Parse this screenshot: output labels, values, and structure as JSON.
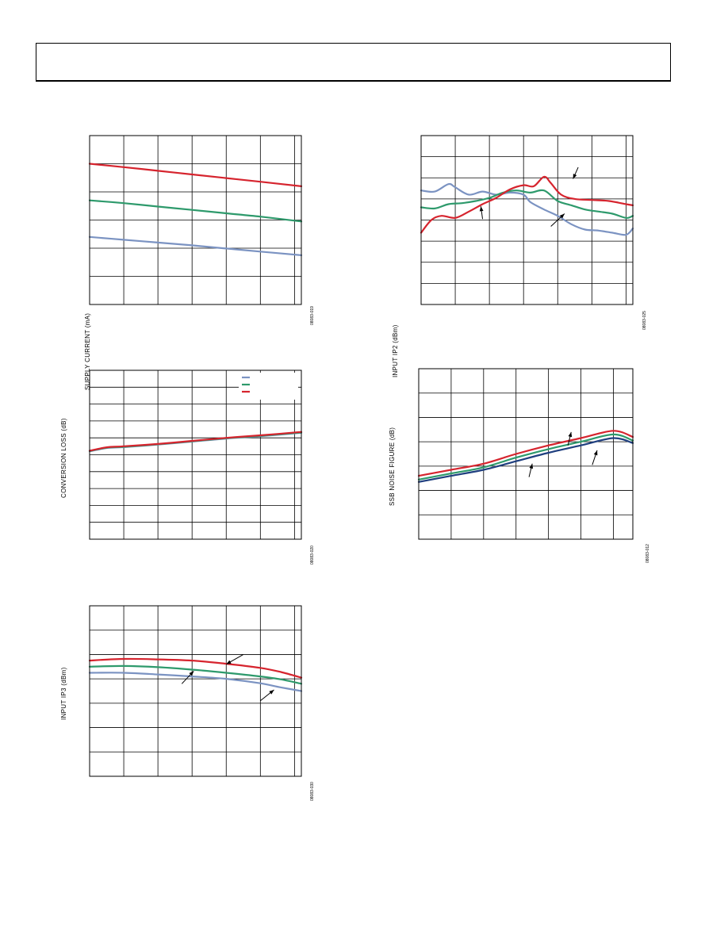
{
  "page": {
    "title": ""
  },
  "chart_data": [
    {
      "id": "c1",
      "type": "line",
      "ylabel": "SUPPLY CURRENT (mA)",
      "fig_id": "08083-019",
      "xlim": [
        0,
        6.2
      ],
      "ylim": [
        0,
        6
      ],
      "xgrid": [
        1,
        2,
        3,
        4,
        5,
        6
      ],
      "ygrid": [
        1,
        2,
        3,
        4,
        5
      ],
      "series": [
        {
          "color": "#d6242e",
          "x": [
            0,
            1,
            2,
            3,
            4,
            5,
            6.2
          ],
          "y": [
            5.0,
            4.88,
            4.75,
            4.62,
            4.49,
            4.36,
            4.2
          ]
        },
        {
          "color": "#2e9a6c",
          "x": [
            0,
            1,
            2,
            3,
            4,
            5,
            6.2
          ],
          "y": [
            3.7,
            3.6,
            3.48,
            3.36,
            3.24,
            3.12,
            2.95
          ]
        },
        {
          "color": "#7b93c2",
          "x": [
            0,
            1,
            2,
            3,
            4,
            5,
            6.2
          ],
          "y": [
            2.4,
            2.3,
            2.2,
            2.1,
            1.99,
            1.88,
            1.75
          ]
        }
      ],
      "arrows": []
    },
    {
      "id": "c2",
      "type": "line",
      "ylabel": "INPUT IP2 (dBm)",
      "fig_id": "08083-025",
      "xlim": [
        0,
        6.2
      ],
      "ylim": [
        0,
        8
      ],
      "xgrid": [
        1,
        2,
        3,
        4,
        5,
        6
      ],
      "ygrid": [
        1,
        2,
        3,
        4,
        5,
        6,
        7
      ],
      "series": [
        {
          "color": "#7b93c2",
          "x": [
            0,
            0.4,
            0.8,
            1.0,
            1.4,
            1.8,
            2.2,
            2.6,
            3.0,
            3.2,
            3.6,
            4.0,
            4.4,
            4.8,
            5.2,
            5.6,
            6.0,
            6.2
          ],
          "y": [
            5.4,
            5.35,
            5.7,
            5.55,
            5.2,
            5.35,
            5.2,
            5.3,
            5.2,
            4.85,
            4.5,
            4.2,
            3.8,
            3.55,
            3.5,
            3.4,
            3.3,
            3.6
          ]
        },
        {
          "color": "#2e9a6c",
          "x": [
            0,
            0.4,
            0.8,
            1.2,
            1.6,
            2.0,
            2.4,
            2.8,
            3.2,
            3.6,
            4.0,
            4.4,
            4.8,
            5.2,
            5.6,
            6.0,
            6.2
          ],
          "y": [
            4.6,
            4.55,
            4.75,
            4.8,
            4.9,
            5.05,
            5.3,
            5.4,
            5.3,
            5.4,
            4.9,
            4.7,
            4.5,
            4.4,
            4.3,
            4.1,
            4.2
          ]
        },
        {
          "color": "#d6242e",
          "x": [
            0,
            0.3,
            0.6,
            1.0,
            1.4,
            1.8,
            2.2,
            2.6,
            3.0,
            3.3,
            3.6,
            3.8,
            4.1,
            4.5,
            5.0,
            5.5,
            6.0,
            6.2
          ],
          "y": [
            3.4,
            4.0,
            4.2,
            4.1,
            4.4,
            4.75,
            5.05,
            5.45,
            5.65,
            5.6,
            6.05,
            5.75,
            5.2,
            5.0,
            4.95,
            4.9,
            4.75,
            4.7
          ]
        }
      ],
      "arrows": [
        {
          "x1": 4.6,
          "y1": 6.5,
          "x2": 4.45,
          "y2": 5.95
        },
        {
          "x1": 1.8,
          "y1": 4.05,
          "x2": 1.75,
          "y2": 4.65
        },
        {
          "x1": 3.8,
          "y1": 3.7,
          "x2": 4.2,
          "y2": 4.3
        }
      ]
    },
    {
      "id": "c3",
      "type": "line",
      "ylabel": "CONVERSION LOSS (dB)",
      "fig_id": "08083-020",
      "xlim": [
        0,
        6.2
      ],
      "ylim": [
        0,
        10
      ],
      "xgrid": [
        1,
        2,
        3,
        4,
        5,
        6
      ],
      "ygrid": [
        1,
        2,
        3,
        4,
        5,
        6,
        7,
        8,
        9
      ],
      "legend": {
        "items": [
          {
            "color": "#7b93c2"
          },
          {
            "color": "#2e9a6c"
          },
          {
            "color": "#d6242e"
          }
        ]
      },
      "series": [
        {
          "color": "#7b93c2",
          "x": [
            0,
            0.5,
            1,
            2,
            3,
            4,
            5,
            6.2
          ],
          "y": [
            5.2,
            5.4,
            5.45,
            5.6,
            5.78,
            5.96,
            6.1,
            6.3
          ]
        },
        {
          "color": "#2e9a6c",
          "x": [
            0,
            0.5,
            1,
            2,
            3,
            4,
            5,
            6.2
          ],
          "y": [
            5.22,
            5.42,
            5.47,
            5.62,
            5.8,
            5.98,
            6.12,
            6.32
          ]
        },
        {
          "color": "#d6242e",
          "x": [
            0,
            0.5,
            1,
            2,
            3,
            4,
            5,
            6.2
          ],
          "y": [
            5.24,
            5.44,
            5.5,
            5.64,
            5.82,
            6.0,
            6.15,
            6.35
          ]
        }
      ],
      "arrows": []
    },
    {
      "id": "c4",
      "type": "line",
      "ylabel": "SSB NOISE FIGURE (dB)",
      "fig_id": "08083-012",
      "xlim": [
        0,
        6.6
      ],
      "ylim": [
        0,
        7
      ],
      "xgrid": [
        1,
        2,
        3,
        4,
        5,
        6
      ],
      "ygrid": [
        1,
        2,
        3,
        4,
        5,
        6
      ],
      "series": [
        {
          "color": "#d6242e",
          "x": [
            0,
            1,
            2,
            3,
            4,
            5,
            6,
            6.6
          ],
          "y": [
            2.6,
            2.85,
            3.1,
            3.5,
            3.85,
            4.15,
            4.45,
            4.2
          ]
        },
        {
          "color": "#2e9a6c",
          "x": [
            0,
            1,
            2,
            3,
            4,
            5,
            6,
            6.6
          ],
          "y": [
            2.45,
            2.7,
            2.95,
            3.35,
            3.7,
            4.0,
            4.3,
            4.05
          ]
        },
        {
          "color": "#1f3f7f",
          "x": [
            0,
            1,
            2,
            3,
            4,
            5,
            6,
            6.6
          ],
          "y": [
            2.35,
            2.6,
            2.85,
            3.2,
            3.55,
            3.85,
            4.15,
            3.95
          ]
        }
      ],
      "arrows": [
        {
          "x1": 4.6,
          "y1": 3.85,
          "x2": 4.7,
          "y2": 4.4
        },
        {
          "x1": 3.4,
          "y1": 2.55,
          "x2": 3.5,
          "y2": 3.1
        },
        {
          "x1": 5.35,
          "y1": 3.05,
          "x2": 5.5,
          "y2": 3.65
        }
      ]
    },
    {
      "id": "c5",
      "type": "line",
      "ylabel": "INPUT IP3 (dBm)",
      "fig_id": "08083-030",
      "xlim": [
        0,
        6.2
      ],
      "ylim": [
        0,
        7
      ],
      "xgrid": [
        1,
        2,
        3,
        4,
        5,
        6
      ],
      "ygrid": [
        1,
        2,
        3,
        4,
        5,
        6
      ],
      "series": [
        {
          "color": "#d6242e",
          "x": [
            0,
            1,
            2,
            3,
            4,
            5,
            5.6,
            6.2
          ],
          "y": [
            4.75,
            4.82,
            4.8,
            4.75,
            4.62,
            4.45,
            4.28,
            4.05
          ]
        },
        {
          "color": "#2e9a6c",
          "x": [
            0,
            1,
            2,
            3,
            4,
            5,
            5.6,
            6.2
          ],
          "y": [
            4.5,
            4.53,
            4.48,
            4.38,
            4.25,
            4.1,
            3.98,
            3.8
          ]
        },
        {
          "color": "#7b93c2",
          "x": [
            0,
            1,
            2,
            3,
            4,
            5,
            5.6,
            6.2
          ],
          "y": [
            4.25,
            4.25,
            4.18,
            4.1,
            4.0,
            3.82,
            3.65,
            3.5
          ]
        }
      ],
      "arrows": [
        {
          "x1": 4.5,
          "y1": 5.0,
          "x2": 4.0,
          "y2": 4.6
        },
        {
          "x1": 2.7,
          "y1": 3.8,
          "x2": 3.05,
          "y2": 4.32
        },
        {
          "x1": 5.0,
          "y1": 3.1,
          "x2": 5.4,
          "y2": 3.55
        }
      ]
    }
  ]
}
